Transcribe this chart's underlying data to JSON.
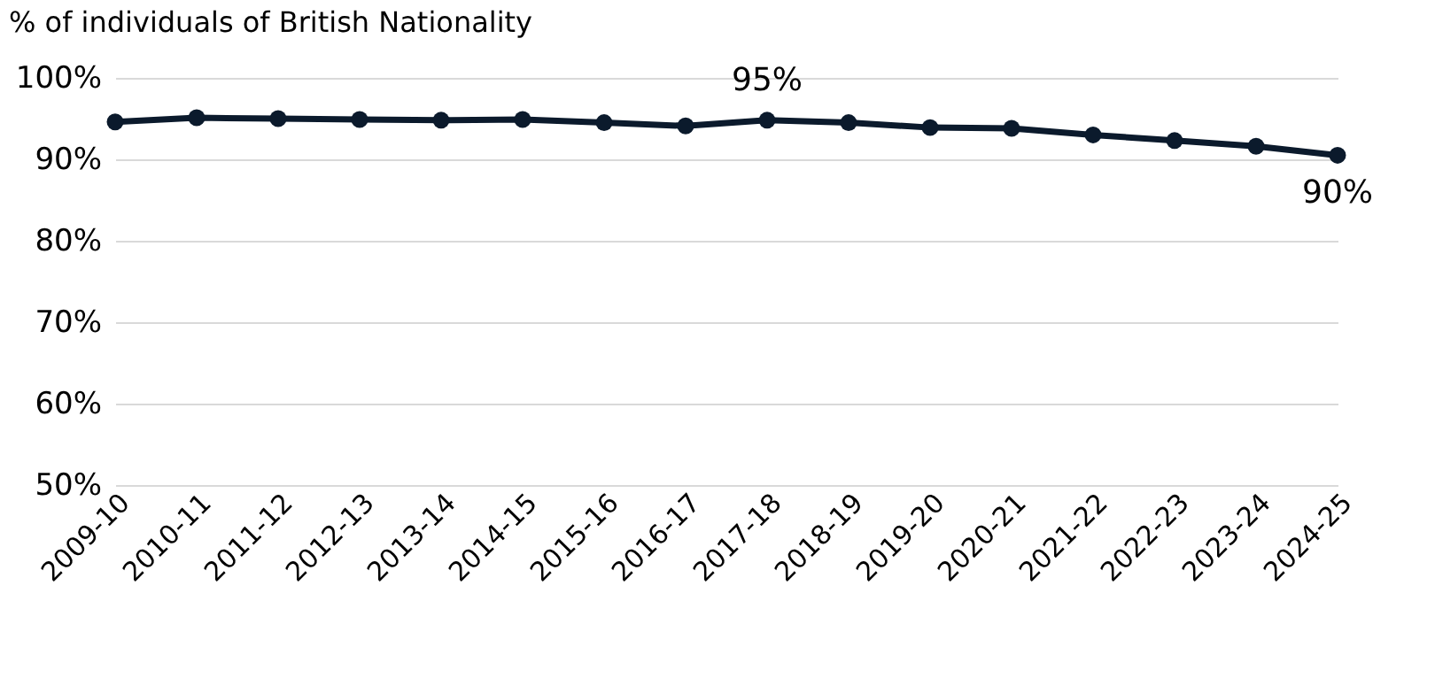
{
  "chart_data": {
    "type": "line",
    "title": "% of individuals of British Nationality",
    "categories": [
      "2009-10",
      "2010-11",
      "2011-12",
      "2012-13",
      "2013-14",
      "2014-15",
      "2015-16",
      "2016-17",
      "2017-18",
      "2018-19",
      "2019-20",
      "2020-21",
      "2021-22",
      "2022-23",
      "2023-24",
      "2024-25"
    ],
    "series": [
      {
        "color": "#0b1a2c",
        "values": [
          94.6,
          95.1,
          95.0,
          94.9,
          94.8,
          94.9,
          94.5,
          94.1,
          94.8,
          94.5,
          93.9,
          93.8,
          93.0,
          92.3,
          91.6,
          90.5
        ],
        "value_labels": [
          null,
          null,
          null,
          null,
          null,
          null,
          null,
          null,
          "95%",
          null,
          null,
          null,
          null,
          null,
          null,
          "90%"
        ]
      }
    ],
    "ylim": [
      50,
      100
    ],
    "yticks": [
      {
        "value": 50,
        "label": "50%"
      },
      {
        "value": 60,
        "label": "60%"
      },
      {
        "value": 70,
        "label": "70%"
      },
      {
        "value": 80,
        "label": "80%"
      },
      {
        "value": 90,
        "label": "90%"
      },
      {
        "value": 100,
        "label": "100%"
      }
    ],
    "grid": "y",
    "marker": "circle",
    "line_style": "solid"
  }
}
